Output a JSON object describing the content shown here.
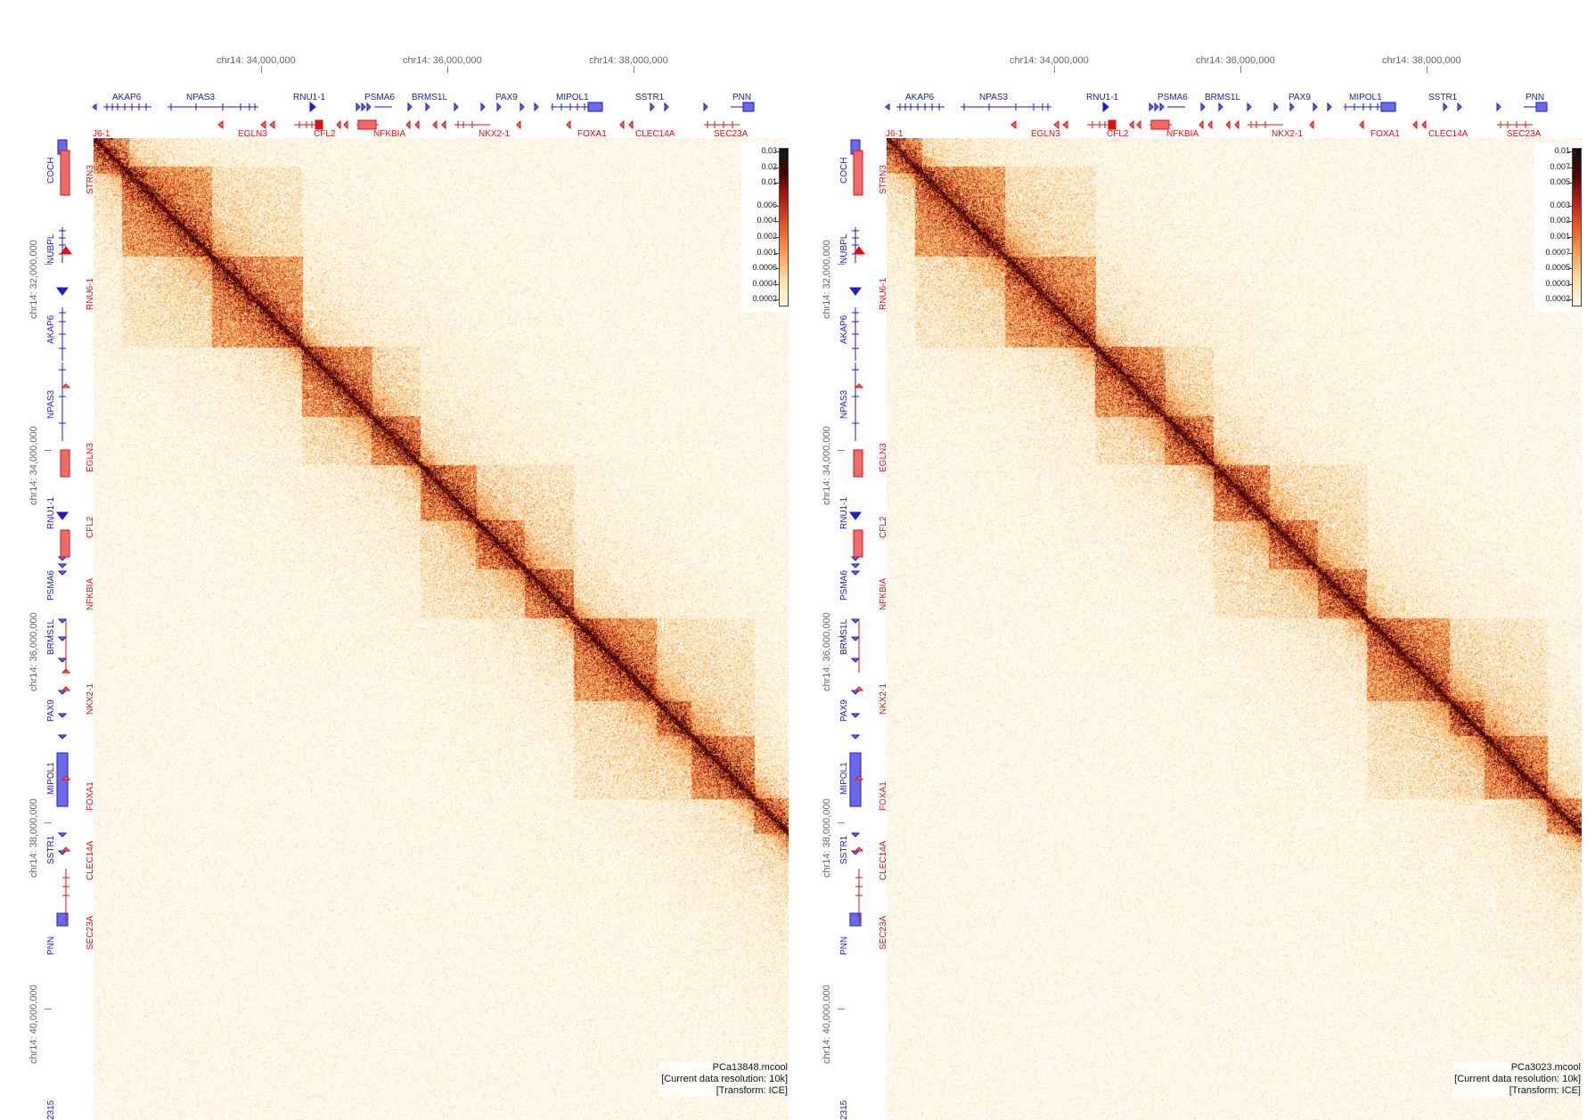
{
  "top_ticks": [
    "chr14: 34,000,000",
    "chr14: 36,000,000",
    "chr14: 38,000,000"
  ],
  "left_ticks": [
    "chr14: 32,000,000",
    "chr14: 34,000,000",
    "chr14: 36,000,000",
    "chr14: 38,000,000",
    "chr14: 40,000,000"
  ],
  "top_genes_plus": [
    "AKAP6",
    "NPAS3",
    "RNU1-1",
    "PSMA6",
    "BRMS1L",
    "PAX9",
    "MIPOL1",
    "SSTR1",
    "PNN"
  ],
  "top_genes_minus": [
    "J6-1",
    "EGLN3",
    "CFL2",
    "NFKBIA",
    "NKX2-1",
    "FOXA1",
    "CLEC14A",
    "SEC23A"
  ],
  "left_genes_plus": [
    "COCH",
    "NUBPL",
    "AKAP6",
    "NPAS3",
    "RNU1-1",
    "PSMA6",
    "BRMS1L",
    "PAX9",
    "MIPOL1",
    "SSTR1",
    "PNN",
    "2315"
  ],
  "left_genes_minus": [
    "STRN3",
    "RNU6-1",
    "EGLN3",
    "CFL2",
    "NFKBIA",
    "NKX2-1",
    "FOXA1",
    "CLEC14A",
    "SEC23A"
  ],
  "colors": {
    "plus_strand": "#1a1ad6",
    "minus_strand": "#e01010",
    "heat_low": "#fffdf8",
    "heat_high": "#3a0505"
  },
  "panels": [
    {
      "colorbar_labels": [
        "0.03",
        "0.02",
        "0.01",
        "0.006",
        "0.004",
        "0.002",
        "0.001",
        "0.0006",
        "0.0004",
        "0.0002"
      ],
      "caption": {
        "file": "PCa13848.mcool",
        "resolution": "[Current data resolution: 10k]",
        "transform": "[Transform: ICE]"
      }
    },
    {
      "colorbar_labels": [
        "0.01",
        "0.007",
        "0.005",
        "0.003",
        "0.002",
        "0.001",
        "0.0007",
        "0.0005",
        "0.0003",
        "0.0002"
      ],
      "caption": {
        "file": "PCa3023.mcool",
        "resolution": "[Current data resolution: 10k]",
        "transform": "[Transform: ICE]"
      }
    }
  ]
}
